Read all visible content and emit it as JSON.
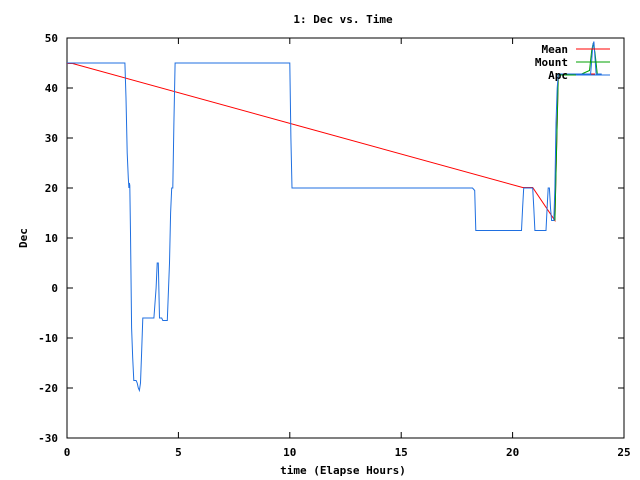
{
  "chart_data": {
    "type": "line",
    "title": "1: Dec vs. Time",
    "xlabel": "time (Elapse Hours)",
    "ylabel": "Dec",
    "xlim": [
      0,
      25
    ],
    "ylim": [
      -30,
      50
    ],
    "xticks": [
      0,
      5,
      10,
      15,
      20,
      25
    ],
    "yticks": [
      -30,
      -20,
      -10,
      0,
      10,
      20,
      30,
      40,
      50
    ],
    "grid": false,
    "legend_position": "top-right",
    "series": [
      {
        "name": "Mean",
        "color": "#ff0000",
        "x": [
          0.0,
          0.25,
          20.45,
          20.9,
          21.9,
          22.05,
          23.55,
          23.7
        ],
        "y": [
          44.9,
          44.9,
          20.1,
          20.1,
          13.5,
          42.8,
          42.8,
          42.8
        ]
      },
      {
        "name": "Mount",
        "color": "#00a000",
        "x": [
          21.9,
          22.05,
          22.3,
          23.0,
          23.45,
          23.55,
          23.62,
          23.7,
          23.8
        ],
        "y": [
          13.5,
          42.6,
          42.6,
          42.6,
          43.5,
          47.5,
          49.0,
          47.0,
          42.8
        ]
      },
      {
        "name": "Apc",
        "color": "#1f6fe0",
        "x": [
          0.0,
          2.6,
          2.65,
          2.7,
          2.75,
          2.78,
          2.8,
          2.82,
          2.85,
          2.9,
          2.95,
          3.0,
          3.05,
          3.1,
          3.15,
          3.2,
          3.25,
          3.3,
          3.35,
          3.4,
          3.5,
          3.6,
          3.7,
          3.8,
          3.9,
          4.0,
          4.05,
          4.1,
          4.15,
          4.2,
          4.25,
          4.3,
          4.35,
          4.4,
          4.5,
          4.6,
          4.65,
          4.7,
          4.75,
          4.8,
          4.85,
          4.9,
          4.95,
          5.0,
          10.0,
          10.05,
          10.1,
          10.2,
          18.2,
          18.3,
          18.35,
          18.4,
          20.4,
          20.45,
          20.5,
          20.9,
          20.95,
          21.0,
          21.1,
          21.5,
          21.55,
          21.6,
          21.65,
          21.7,
          21.75,
          21.8,
          21.85,
          21.9,
          21.95,
          22.0,
          22.05,
          23.5,
          23.55,
          23.6,
          23.65,
          23.7,
          23.75,
          23.8,
          24.0
        ],
        "y": [
          45,
          45,
          38,
          27,
          22,
          20,
          21,
          20.5,
          11,
          -8,
          -14,
          -18.5,
          -18.5,
          -18.5,
          -19,
          -20,
          -20.5,
          -19,
          -13,
          -6,
          -6,
          -6,
          -6,
          -6,
          -6,
          0,
          5,
          5,
          -6,
          -6,
          -6,
          -6.5,
          -6.5,
          -6.5,
          -6.5,
          5,
          15,
          20,
          20,
          33,
          45,
          45,
          45,
          45,
          45,
          30,
          20,
          20,
          20,
          19.5,
          11.5,
          11.5,
          11.5,
          16,
          20,
          20,
          16,
          11.5,
          11.5,
          11.5,
          16,
          20,
          20,
          16,
          13.5,
          13.5,
          13.5,
          20,
          33,
          40,
          42.8,
          42.8,
          45.5,
          48.5,
          49.3,
          46,
          42.8,
          42.8,
          42.8
        ]
      }
    ]
  }
}
